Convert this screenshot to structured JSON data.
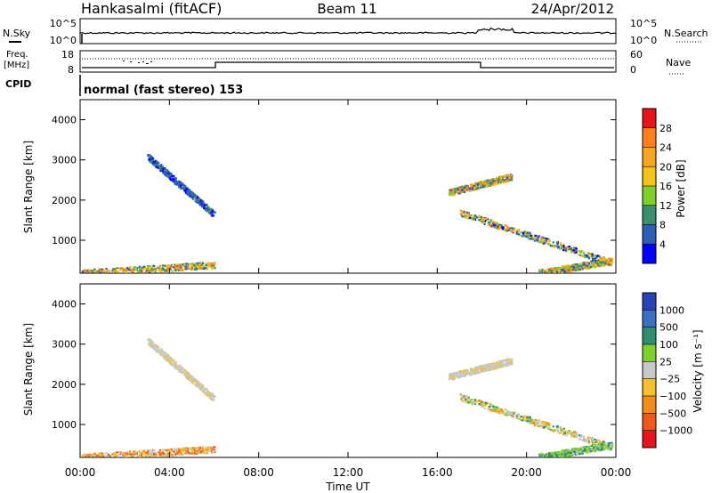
{
  "header": {
    "station": "Hankasalmi (fitACF)",
    "beam": "Beam 11",
    "date": "24/Apr/2012"
  },
  "noise_panel": {
    "left_label": "N.Sky",
    "right_label": "N.Search",
    "left_ticks": [
      "10^5",
      "10^0"
    ],
    "right_ticks": [
      "10^5",
      "10^0"
    ]
  },
  "freq_panel": {
    "left_label_1": "Freq.",
    "left_label_2": "[MHz]",
    "left_ticks": [
      "18",
      "8"
    ],
    "right_label": "Nave",
    "right_ticks": [
      "60",
      "0"
    ]
  },
  "cpid": {
    "label": "CPID",
    "text": "normal (fast stereo) 153"
  },
  "power_colorbar": {
    "title": "Power [dB]",
    "ticks": [
      "28",
      "24",
      "20",
      "16",
      "12",
      "8",
      "4"
    ],
    "colors": [
      "#e8141c",
      "#ff7f1e",
      "#f5a623",
      "#f0c419",
      "#7ed02c",
      "#3c8f6a",
      "#2f5db3",
      "#0000ff"
    ]
  },
  "velocity_colorbar": {
    "title": "Velocity [m s⁻¹]",
    "ticks": [
      "1000",
      "500",
      "100",
      "25",
      "−25",
      "−100",
      "−500",
      "−1000"
    ],
    "colors": [
      "#2741b7",
      "#3a6fc2",
      "#2f8f6d",
      "#7ed02c",
      "#c8c8c8",
      "#f2c12e",
      "#f28c1e",
      "#ee5a1b",
      "#e8141c"
    ]
  },
  "chart_data": {
    "type": "heatmap",
    "panels": [
      {
        "name": "Power",
        "ylabel": "Slant Range [km]",
        "ylim": [
          180,
          4500
        ],
        "yticks": [
          1000,
          2000,
          3000,
          4000
        ]
      },
      {
        "name": "Velocity",
        "ylabel": "Slant Range [km]",
        "ylim": [
          180,
          4500
        ],
        "yticks": [
          1000,
          2000,
          3000,
          4000
        ]
      }
    ],
    "xlabel": "Time UT",
    "xlim": [
      0,
      24
    ],
    "xticks": [
      0,
      4,
      8,
      12,
      16,
      20,
      24
    ],
    "xtick_labels": [
      "00:00",
      "04:00",
      "08:00",
      "12:00",
      "16:00",
      "20:00",
      "00:00"
    ],
    "scatter_features": [
      {
        "t": [
          3.0,
          6.0
        ],
        "r": [
          3100,
          1650
        ],
        "power": "low",
        "velocity": "near-zero"
      },
      {
        "t": [
          0.0,
          6.0
        ],
        "r": [
          200,
          400
        ],
        "power": "medium",
        "velocity": "negative"
      },
      {
        "t": [
          16.5,
          19.3
        ],
        "r": [
          2200,
          2600
        ],
        "power": "medium",
        "velocity": "near-zero"
      },
      {
        "t": [
          17.0,
          23.8
        ],
        "r": [
          1700,
          450
        ],
        "power": "mixed",
        "velocity": "mixed"
      },
      {
        "t": [
          20.5,
          23.8
        ],
        "r": [
          200,
          500
        ],
        "power": "medium",
        "velocity": "positive"
      }
    ]
  }
}
